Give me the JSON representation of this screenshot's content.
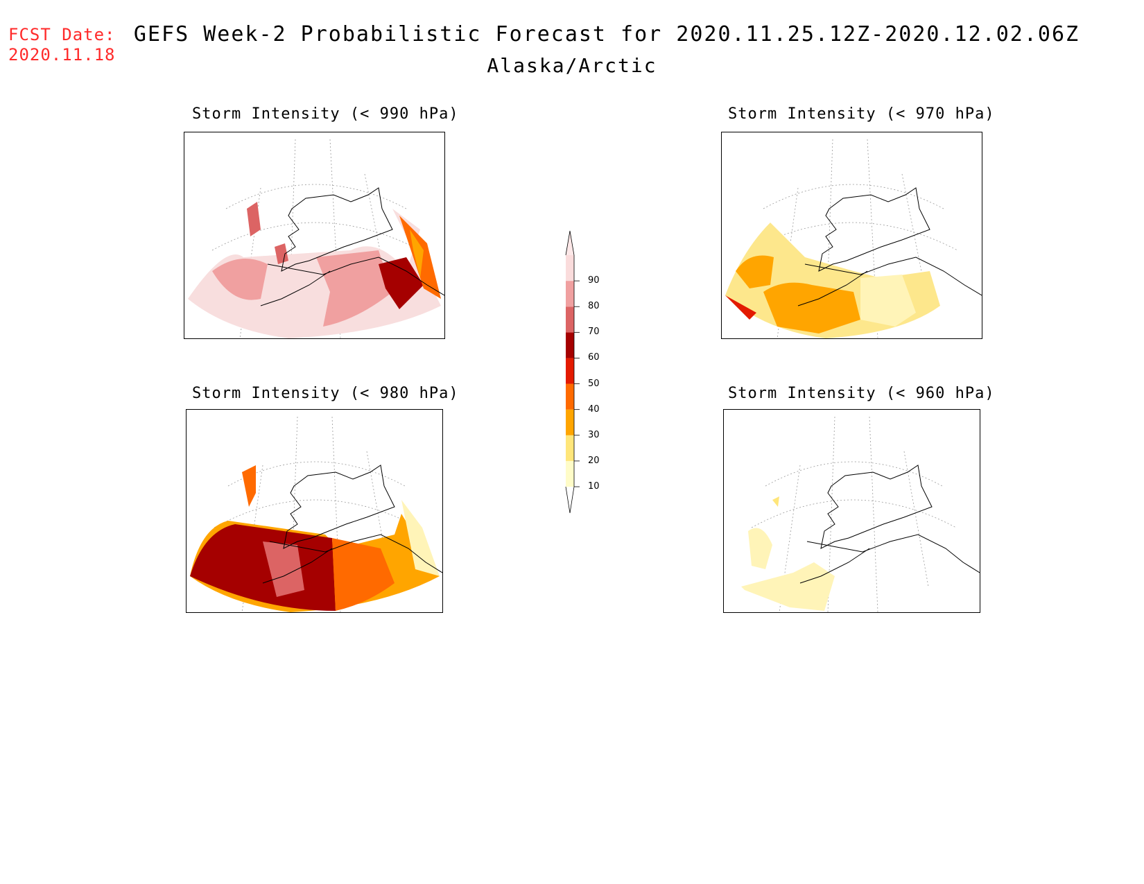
{
  "header": {
    "fcst_label": "FCST Date:",
    "fcst_date": "2020.11.18",
    "title": "GEFS Week-2 Probabilistic Forecast for 2020.11.25.12Z-2020.12.02.06Z",
    "subtitle": "Alaska/Arctic"
  },
  "panels": [
    {
      "id": "p990",
      "title": "Storm Intensity (< 990 hPa)",
      "threshold_hpa": 990,
      "dominant_color": "#f8dede"
    },
    {
      "id": "p970",
      "title": "Storm Intensity (< 970 hPa)",
      "threshold_hpa": 970,
      "dominant_color": "#fde78c"
    },
    {
      "id": "p980",
      "title": "Storm Intensity (< 980 hPa)",
      "threshold_hpa": 980,
      "dominant_color": "#b00000"
    },
    {
      "id": "p960",
      "title": "Storm Intensity (< 960 hPa)",
      "threshold_hpa": 960,
      "dominant_color": "#fff4b8"
    }
  ],
  "colorbar": {
    "levels": [
      "10",
      "20",
      "30",
      "40",
      "50",
      "60",
      "70",
      "80",
      "90"
    ],
    "colors": [
      "#fffcc8",
      "#ffe67a",
      "#ffa500",
      "#ff6a00",
      "#e31a00",
      "#a50000",
      "#dc6464",
      "#f0a0a0",
      "#fadcdc"
    ]
  }
}
